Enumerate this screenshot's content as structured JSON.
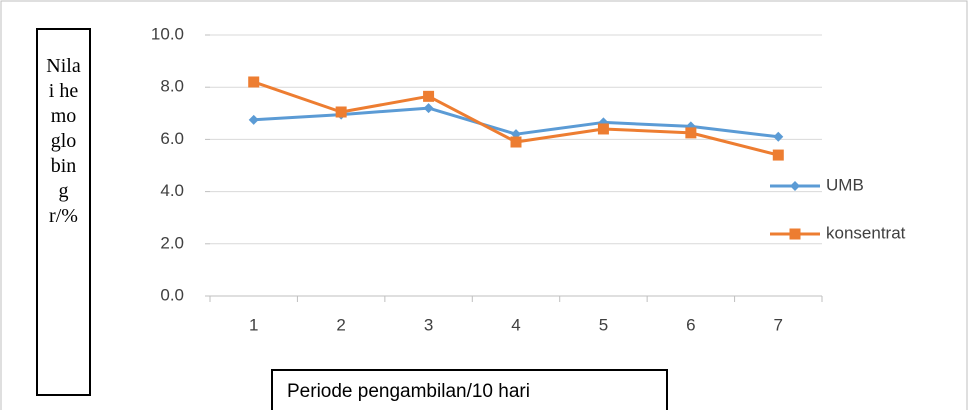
{
  "chart_data": {
    "type": "line",
    "x_label": "Periode pengambilan/10 hari",
    "y_label": "Nilai hemoglobin gr/%",
    "categories": [
      "1",
      "2",
      "3",
      "4",
      "5",
      "6",
      "7"
    ],
    "series": [
      {
        "name": "UMB",
        "color": "#5b9bd5",
        "marker": "diamond",
        "values": [
          6.75,
          6.95,
          7.2,
          6.2,
          6.65,
          6.5,
          6.1
        ]
      },
      {
        "name": "konsentrat",
        "color": "#ed7d31",
        "marker": "square",
        "values": [
          8.2,
          7.05,
          7.65,
          5.9,
          6.4,
          6.25,
          5.4
        ]
      }
    ],
    "ylim": [
      0,
      10
    ],
    "yticks": [
      {
        "value": 0,
        "label": "0.0"
      },
      {
        "value": 2,
        "label": "2.0"
      },
      {
        "value": 4,
        "label": "4.0"
      },
      {
        "value": 6,
        "label": "6.0"
      },
      {
        "value": 8,
        "label": "8.0"
      },
      {
        "value": 10,
        "label": "10.0"
      }
    ],
    "grid": true,
    "legend": "right"
  }
}
